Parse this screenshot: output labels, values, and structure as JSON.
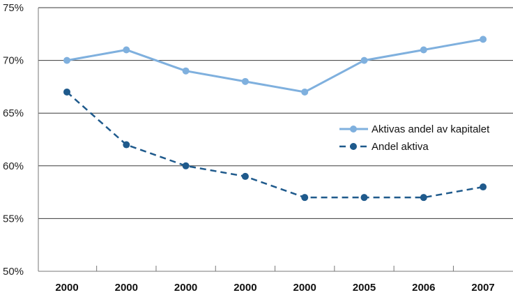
{
  "chart_data": {
    "type": "line",
    "categories": [
      "2000",
      "2000",
      "2000",
      "2000",
      "2000",
      "2005",
      "2006",
      "2007"
    ],
    "series": [
      {
        "name": "Aktivas andel av kapitalet",
        "values": [
          70,
          71,
          69,
          68,
          67,
          70,
          71,
          72
        ],
        "color": "#7fb0de",
        "style": "solid"
      },
      {
        "name": "Andel aktiva",
        "values": [
          67,
          62,
          60,
          59,
          57,
          57,
          57,
          58
        ],
        "color": "#1f5a8c",
        "style": "dashed"
      }
    ],
    "ylim": [
      50,
      75
    ],
    "yticks": [
      50,
      55,
      60,
      65,
      70,
      75
    ],
    "ytick_suffix": "%",
    "grid": true,
    "legend_position": "right"
  }
}
